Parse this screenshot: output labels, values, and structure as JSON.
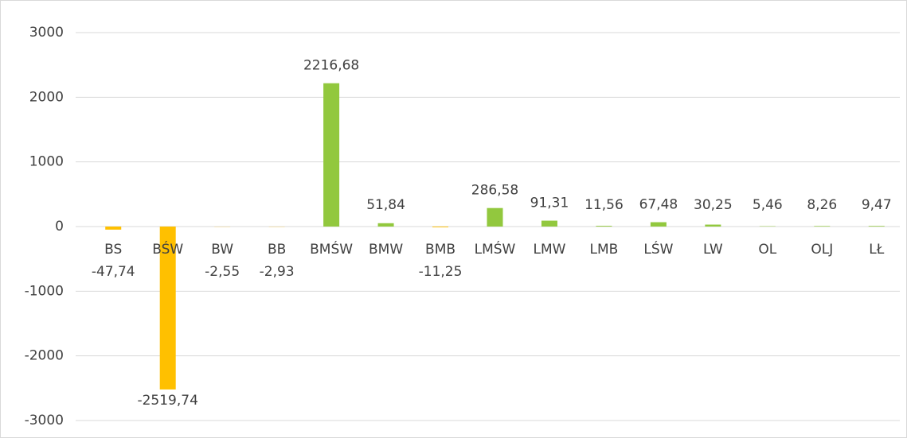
{
  "chart_data": {
    "type": "bar",
    "categories": [
      "BS",
      "BŚW",
      "BW",
      "BB",
      "BMŚW",
      "BMW",
      "BMB",
      "LMŚW",
      "LMW",
      "LMB",
      "LŚW",
      "LW",
      "OL",
      "OLJ",
      "LŁ"
    ],
    "values": [
      -47.74,
      -2519.74,
      -2.55,
      -2.93,
      2216.68,
      51.84,
      -11.25,
      286.58,
      91.31,
      11.56,
      67.48,
      30.25,
      5.46,
      8.26,
      9.47
    ],
    "value_labels": [
      "-47,74",
      "-2519,74",
      "-2,55",
      "-2,93",
      "2216,68",
      "51,84",
      "-11,25",
      "286,58",
      "91,31",
      "11,56",
      "67,48",
      "30,25",
      "5,46",
      "8,26",
      "9,47"
    ],
    "color_positive": "#92c83e",
    "color_negative": "#ffc000",
    "ylim": [
      -3000,
      3000
    ],
    "yticks": [
      -3000,
      -2000,
      -1000,
      0,
      1000,
      2000,
      3000
    ],
    "grid": true
  }
}
